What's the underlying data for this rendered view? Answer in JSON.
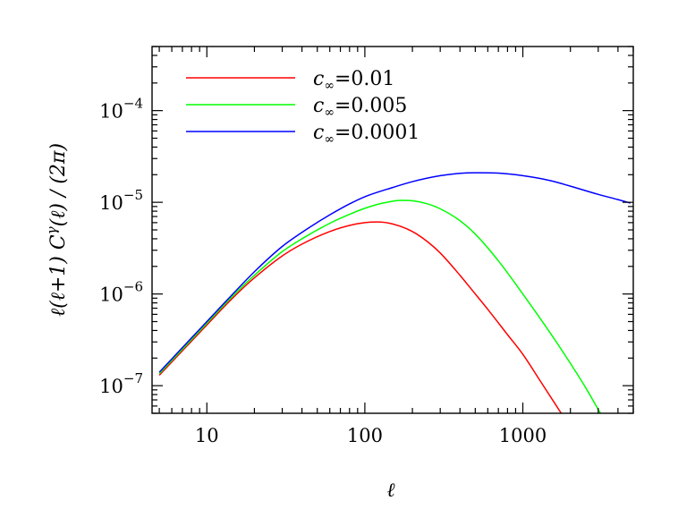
{
  "chart_data": {
    "type": "line",
    "title": "",
    "xlabel": "ℓ",
    "ylabel": "ℓ(ℓ+1) C^γ(ℓ) / (2π)",
    "xscale": "log",
    "yscale": "log",
    "xlim": [
      4.5,
      5000
    ],
    "ylim": [
      5e-08,
      0.0005
    ],
    "grid": false,
    "legend_position": "top-left",
    "x_tick_labels": [
      {
        "value": 10,
        "text": "10"
      },
      {
        "value": 100,
        "text": "100"
      },
      {
        "value": 1000,
        "text": "1000"
      }
    ],
    "y_tick_labels": [
      {
        "value": 1e-07,
        "base": "10",
        "exp": "−7"
      },
      {
        "value": 1e-06,
        "base": "10",
        "exp": "−6"
      },
      {
        "value": 1e-05,
        "base": "10",
        "exp": "−5"
      },
      {
        "value": 0.0001,
        "base": "10",
        "exp": "−4"
      }
    ],
    "series": [
      {
        "name": "c∞=0.01",
        "legend_symbol": "c",
        "legend_sub": "∞",
        "legend_value": "=0.01",
        "color": "#ff0000",
        "points": [
          [
            5,
            1.3e-07
          ],
          [
            7,
            2.4e-07
          ],
          [
            10,
            4.6e-07
          ],
          [
            15,
            9.5e-07
          ],
          [
            20,
            1.5e-06
          ],
          [
            30,
            2.6e-06
          ],
          [
            40,
            3.5e-06
          ],
          [
            60,
            4.8e-06
          ],
          [
            80,
            5.6e-06
          ],
          [
            100,
            6e-06
          ],
          [
            120,
            6.1e-06
          ],
          [
            150,
            5.8e-06
          ],
          [
            200,
            4.8e-06
          ],
          [
            250,
            3.7e-06
          ],
          [
            300,
            2.8e-06
          ],
          [
            400,
            1.6e-06
          ],
          [
            500,
            1e-06
          ],
          [
            600,
            6.8e-07
          ],
          [
            800,
            3.6e-07
          ],
          [
            1000,
            2.2e-07
          ],
          [
            1300,
            1.1e-07
          ],
          [
            1750,
            5e-08
          ]
        ]
      },
      {
        "name": "c∞=0.005",
        "legend_symbol": "c",
        "legend_sub": "∞",
        "legend_value": "=0.005",
        "color": "#00ff00",
        "points": [
          [
            5,
            1.35e-07
          ],
          [
            7,
            2.5e-07
          ],
          [
            10,
            4.8e-07
          ],
          [
            15,
            1e-06
          ],
          [
            20,
            1.6e-06
          ],
          [
            30,
            2.9e-06
          ],
          [
            40,
            4e-06
          ],
          [
            60,
            5.9e-06
          ],
          [
            80,
            7.4e-06
          ],
          [
            100,
            8.6e-06
          ],
          [
            130,
            9.8e-06
          ],
          [
            170,
            1.05e-05
          ],
          [
            200,
            1.04e-05
          ],
          [
            250,
            9.6e-06
          ],
          [
            300,
            8.5e-06
          ],
          [
            400,
            6.3e-06
          ],
          [
            500,
            4.5e-06
          ],
          [
            700,
            2.3e-06
          ],
          [
            1000,
            1e-06
          ],
          [
            1500,
            3.7e-07
          ],
          [
            2000,
            1.75e-07
          ],
          [
            2500,
            9.5e-08
          ],
          [
            3000,
            5.5e-08
          ],
          [
            3100,
            5e-08
          ]
        ]
      },
      {
        "name": "c∞=0.0001",
        "legend_symbol": "c",
        "legend_sub": "∞",
        "legend_value": "=0.0001",
        "color": "#0000ff",
        "points": [
          [
            5,
            1.4e-07
          ],
          [
            7,
            2.6e-07
          ],
          [
            10,
            5e-07
          ],
          [
            15,
            1.05e-06
          ],
          [
            20,
            1.75e-06
          ],
          [
            30,
            3.3e-06
          ],
          [
            40,
            4.7e-06
          ],
          [
            60,
            7.3e-06
          ],
          [
            80,
            9.6e-06
          ],
          [
            100,
            1.15e-05
          ],
          [
            150,
            1.45e-05
          ],
          [
            200,
            1.68e-05
          ],
          [
            300,
            1.95e-05
          ],
          [
            400,
            2.07e-05
          ],
          [
            500,
            2.1e-05
          ],
          [
            700,
            2.08e-05
          ],
          [
            1000,
            1.95e-05
          ],
          [
            1500,
            1.72e-05
          ],
          [
            2000,
            1.5e-05
          ],
          [
            3000,
            1.22e-05
          ],
          [
            4000,
            1.07e-05
          ],
          [
            4800,
            9.8e-06
          ]
        ]
      }
    ]
  }
}
